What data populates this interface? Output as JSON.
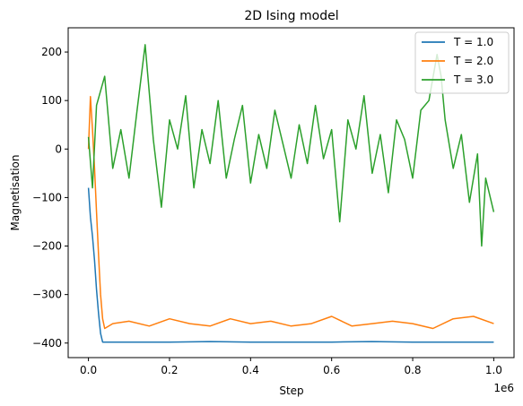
{
  "chart_data": {
    "type": "line",
    "title": "2D Ising model",
    "xlabel": "Step",
    "ylabel": "Magnetisation",
    "x_offset_label": "1e6",
    "xlim": [
      -0.05,
      1.05
    ],
    "ylim": [
      -430,
      250
    ],
    "xticks": [
      0.0,
      0.2,
      0.4,
      0.6,
      0.8,
      1.0
    ],
    "xtick_labels": [
      "0.0",
      "0.2",
      "0.4",
      "0.6",
      "0.8",
      "1.0"
    ],
    "yticks": [
      -400,
      -300,
      -200,
      -100,
      0,
      100,
      200
    ],
    "ytick_labels": [
      "−400",
      "−300",
      "−200",
      "−100",
      "0",
      "100",
      "200"
    ],
    "grid": false,
    "legend_position": "top-right",
    "series": [
      {
        "name": "T = 1.0",
        "color": "#1f77b4",
        "x": [
          0.0,
          0.005,
          0.01,
          0.015,
          0.02,
          0.025,
          0.03,
          0.035,
          0.05,
          0.1,
          0.2,
          0.3,
          0.4,
          0.5,
          0.6,
          0.7,
          0.8,
          0.9,
          1.0
        ],
        "y": [
          -80,
          -140,
          -180,
          -230,
          -290,
          -340,
          -380,
          -398,
          -398,
          -398,
          -398,
          -397,
          -398,
          -398,
          -398,
          -397,
          -398,
          -398,
          -398
        ]
      },
      {
        "name": "T = 2.0",
        "color": "#ff7f0e",
        "x": [
          0.0,
          0.005,
          0.01,
          0.015,
          0.02,
          0.025,
          0.03,
          0.035,
          0.04,
          0.06,
          0.1,
          0.15,
          0.2,
          0.25,
          0.3,
          0.35,
          0.4,
          0.45,
          0.5,
          0.55,
          0.6,
          0.65,
          0.7,
          0.75,
          0.8,
          0.85,
          0.9,
          0.95,
          1.0
        ],
        "y": [
          0,
          108,
          40,
          -40,
          -130,
          -220,
          -300,
          -350,
          -370,
          -360,
          -355,
          -365,
          -350,
          -360,
          -365,
          -350,
          -360,
          -355,
          -365,
          -360,
          -345,
          -365,
          -360,
          -355,
          -360,
          -370,
          -350,
          -345,
          -360
        ]
      },
      {
        "name": "T = 3.0",
        "color": "#2ca02c",
        "x": [
          0.0,
          0.01,
          0.02,
          0.04,
          0.06,
          0.08,
          0.1,
          0.12,
          0.14,
          0.16,
          0.18,
          0.2,
          0.22,
          0.24,
          0.26,
          0.28,
          0.3,
          0.32,
          0.34,
          0.36,
          0.38,
          0.4,
          0.42,
          0.44,
          0.46,
          0.48,
          0.5,
          0.52,
          0.54,
          0.56,
          0.58,
          0.6,
          0.62,
          0.64,
          0.66,
          0.68,
          0.7,
          0.72,
          0.74,
          0.76,
          0.78,
          0.8,
          0.82,
          0.84,
          0.86,
          0.87,
          0.88,
          0.9,
          0.92,
          0.94,
          0.96,
          0.97,
          0.98,
          1.0
        ],
        "y": [
          25,
          -80,
          90,
          150,
          -40,
          40,
          -60,
          80,
          215,
          20,
          -120,
          60,
          0,
          110,
          -80,
          40,
          -30,
          100,
          -60,
          20,
          90,
          -70,
          30,
          -40,
          80,
          10,
          -60,
          50,
          -30,
          90,
          -20,
          40,
          -150,
          60,
          0,
          110,
          -50,
          30,
          -90,
          60,
          20,
          -60,
          80,
          100,
          195,
          150,
          60,
          -40,
          30,
          -110,
          -10,
          -200,
          -60,
          -130
        ]
      }
    ]
  }
}
